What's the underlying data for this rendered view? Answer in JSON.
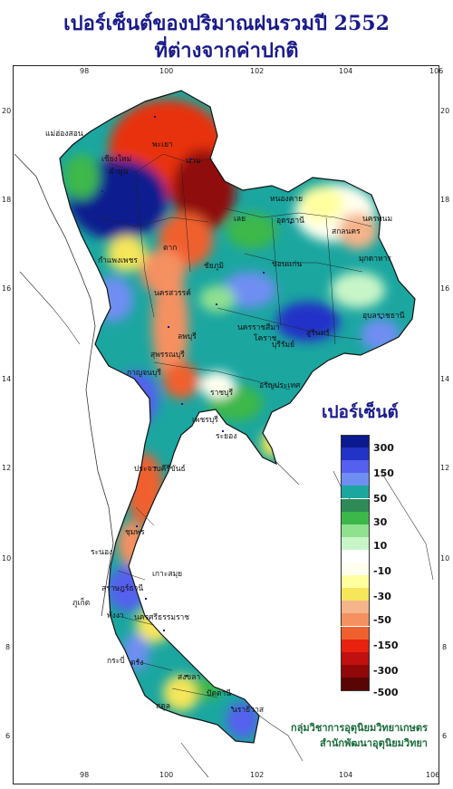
{
  "header": {
    "title_line1": "เปอร์เซ็นต์ของปริมาณฝนรวมปี 2552",
    "title_line2": "ที่ต่างจากค่าปกติ"
  },
  "axes": {
    "lon_ticks": [
      "98",
      "100",
      "102",
      "104",
      "106"
    ],
    "lat_ticks": [
      "20",
      "18",
      "16",
      "14",
      "12",
      "10",
      "8",
      "6"
    ]
  },
  "legend": {
    "title": "เปอร์เซ็นต์",
    "classes": [
      {
        "color": "#0b1a8e"
      },
      {
        "color": "#2233c8"
      },
      {
        "color": "#5560ee"
      },
      {
        "color": "#6f8ef2"
      },
      {
        "color": "#1ba6a0"
      },
      {
        "color": "#2e8b57"
      },
      {
        "color": "#3cb84a"
      },
      {
        "color": "#8fe08f"
      },
      {
        "color": "#c8f5c8"
      },
      {
        "color": "#ffffff"
      },
      {
        "color": "#fffff0"
      },
      {
        "color": "#ffffa0"
      },
      {
        "color": "#f5e65a"
      },
      {
        "color": "#f5b48a"
      },
      {
        "color": "#f59060"
      },
      {
        "color": "#f0602e"
      },
      {
        "color": "#e8220e"
      },
      {
        "color": "#c01010"
      },
      {
        "color": "#900808"
      },
      {
        "color": "#5a0505"
      }
    ],
    "labels": [
      "300",
      "150",
      "50",
      "30",
      "10",
      "-10",
      "-30",
      "-50",
      "-150",
      "-300",
      "-500"
    ]
  },
  "credit": {
    "line1": "กลุ่มวิชาการอุตุนิยมวิทยาเกษตร",
    "line2": "สำนักพัฒนาอุตุนิยมวิทยา"
  },
  "places": [
    "แม่ฮ่องสอน",
    "เชียงใหม่",
    "ลำพูน",
    "พะเยา",
    "น่าน",
    "เลย",
    "หนองคาย",
    "อุดรธานี",
    "สกลนคร",
    "นครพนม",
    "มุกดาหาร",
    "ขอนแก่น",
    "ชัยภูมิ",
    "นครราชสีมา",
    "โคราช",
    "บุรีรัมย์",
    "สุรินทร์",
    "อุบลราชธานี",
    "ตาก",
    "กำแพงเพชร",
    "นครสวรรค์",
    "ลพบุรี",
    "สุพรรณบุรี",
    "กาญจนบุรี",
    "อรัญประเทศ",
    "ราชบุรี",
    "เพชรบุรี",
    "ระยอง",
    "ประจวบคีรีขันธ์",
    "ชุมพร",
    "ระนอง",
    "สุราษฎร์ธานี",
    "เกาะสมุย",
    "นครศรีธรรมราช",
    "ภูเก็ต",
    "พังงา",
    "กระบี่",
    "ตรัง",
    "สงขลา",
    "ปัตตานี",
    "นราธิวาส",
    "สตูล"
  ]
}
